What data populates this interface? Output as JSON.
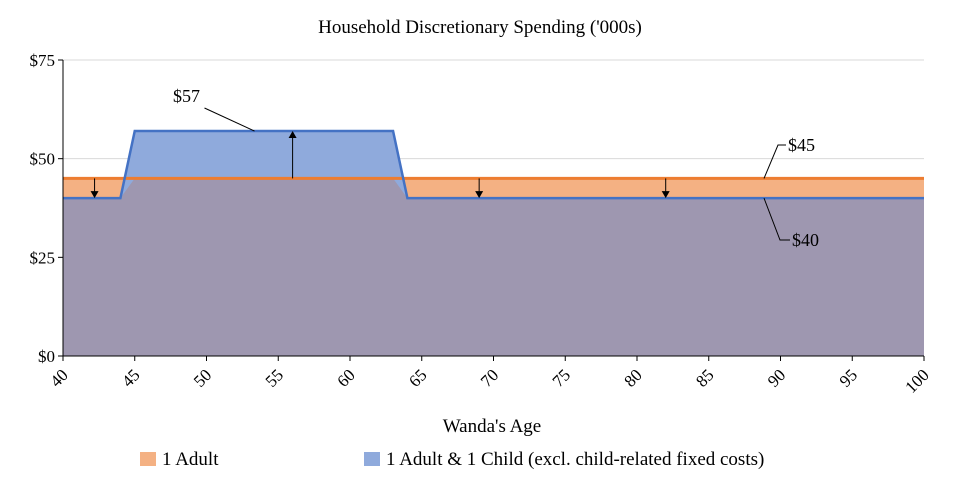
{
  "chart_data": {
    "type": "area",
    "title": "Household Discretionary Spending ('000s)",
    "xlabel": "Wanda's Age",
    "ylabel": "",
    "xlim": [
      40,
      100
    ],
    "ylim": [
      0,
      75
    ],
    "x_ticks": [
      "40",
      "45",
      "50",
      "55",
      "60",
      "65",
      "70",
      "75",
      "80",
      "85",
      "90",
      "95",
      "100"
    ],
    "y_ticks": [
      "$0",
      "$25",
      "$50",
      "$75"
    ],
    "grid": "horizontal",
    "legend_position": "bottom",
    "series": [
      {
        "name": "1 Adult",
        "color": "#f4b183",
        "line_color": "#ed7d31",
        "points": [
          [
            40,
            45
          ],
          [
            100,
            45
          ]
        ]
      },
      {
        "name": "1 Adult & 1 Child (excl. child-related fixed costs)",
        "color": "#8faadc",
        "line_color": "#4472c4",
        "points": [
          [
            40,
            40
          ],
          [
            44,
            40
          ],
          [
            45,
            57
          ],
          [
            63,
            57
          ],
          [
            64,
            40
          ],
          [
            100,
            40
          ]
        ]
      }
    ],
    "annotations": [
      {
        "text": "$57",
        "x": 50,
        "y": 57
      },
      {
        "text": "$45",
        "x": 90,
        "y": 45
      },
      {
        "text": "$40",
        "x": 90,
        "y": 40
      }
    ],
    "arrows": [
      {
        "x": 42.2,
        "from": 45,
        "to": 40
      },
      {
        "x": 56,
        "from": 45,
        "to": 57
      },
      {
        "x": 69,
        "from": 45,
        "to": 40
      },
      {
        "x": 82,
        "from": 45,
        "to": 40
      }
    ],
    "overlap_color": "#9e97b0"
  }
}
